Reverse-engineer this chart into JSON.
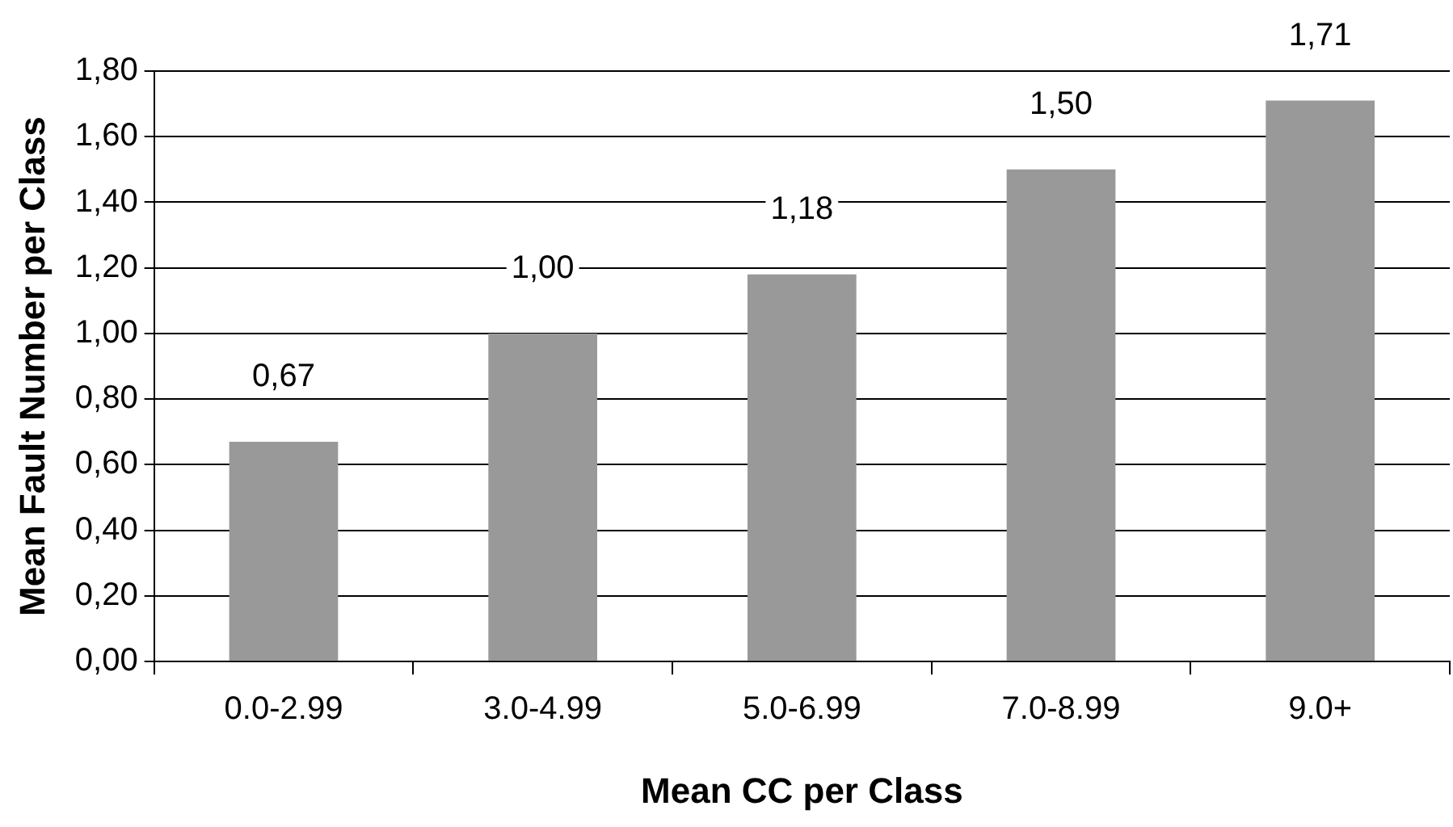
{
  "chart_data": {
    "type": "bar",
    "xlabel": "Mean CC per Class",
    "ylabel": "Mean Fault Number per Class",
    "categories": [
      "0.0-2.99",
      "3.0-4.99",
      "5.0-6.99",
      "7.0-8.99",
      "9.0+"
    ],
    "values": [
      0.67,
      1.0,
      1.18,
      1.5,
      1.71
    ],
    "value_labels": [
      "0,67",
      "1,00",
      "1,18",
      "1,50",
      "1,71"
    ],
    "color": "#999999",
    "ylim": [
      0,
      1.8
    ],
    "yticks": [
      {
        "value": 0,
        "label": "0,00"
      },
      {
        "value": 0.2,
        "label": "0,20"
      },
      {
        "value": 0.4,
        "label": "0,40"
      },
      {
        "value": 0.6,
        "label": "0,60"
      },
      {
        "value": 0.8,
        "label": "0,80"
      },
      {
        "value": 1.0,
        "label": "1,00"
      },
      {
        "value": 1.2,
        "label": "1,20"
      },
      {
        "value": 1.4,
        "label": "1,40"
      },
      {
        "value": 1.6,
        "label": "1,60"
      },
      {
        "value": 1.8,
        "label": "1,80"
      }
    ],
    "grid": "y",
    "legend": false
  }
}
